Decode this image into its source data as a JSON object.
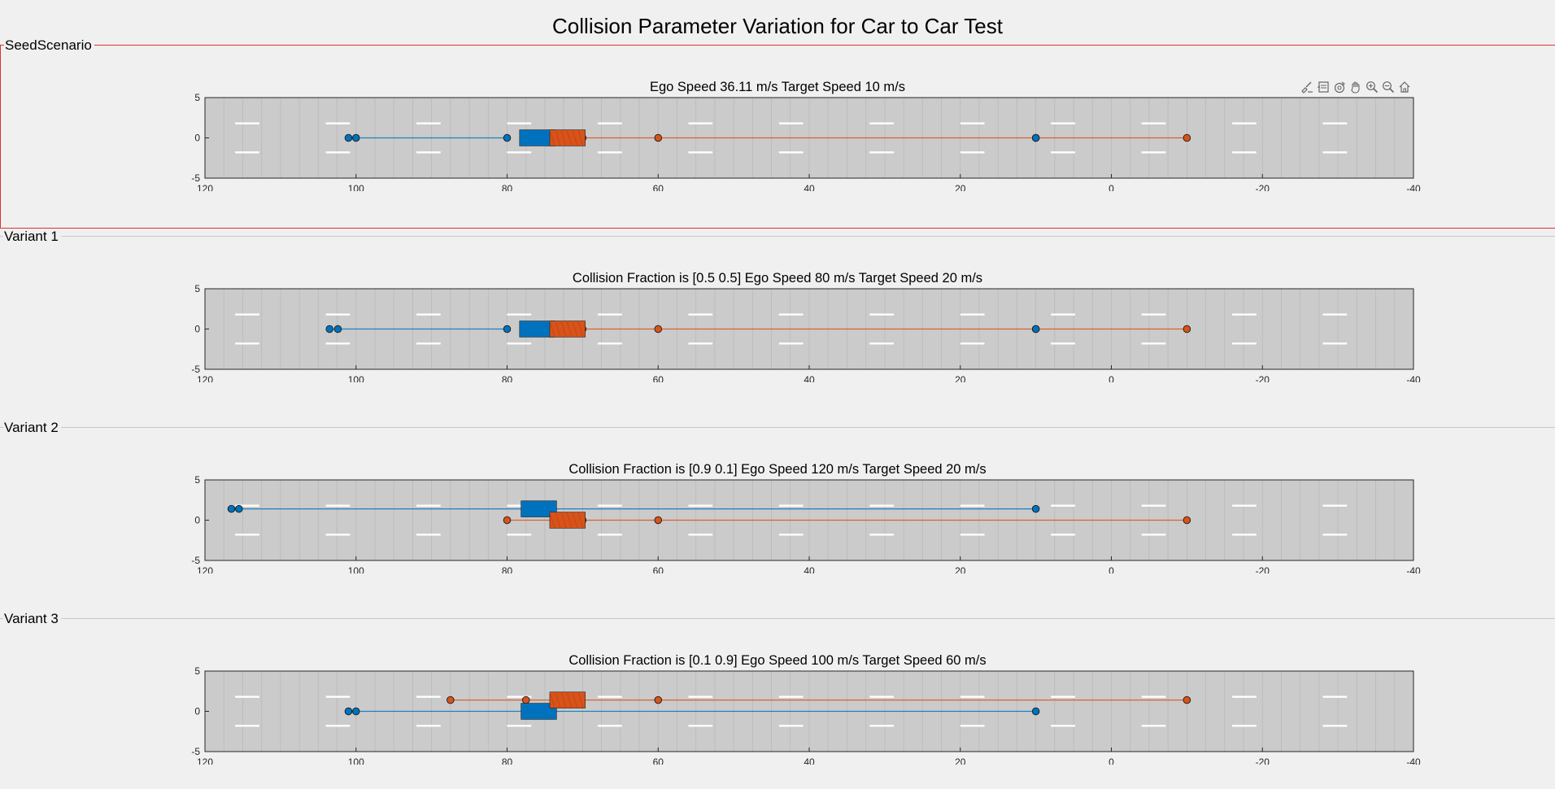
{
  "figure": {
    "title": "Collision Parameter Variation for Car to Car Test"
  },
  "toolbar": {
    "icons": [
      "brush-icon",
      "datatip-icon",
      "rotate-icon",
      "pan-icon",
      "zoom-in-icon",
      "zoom-out-icon",
      "home-icon"
    ]
  },
  "colors": {
    "background": "#f0f0f0",
    "road": "#cbcbcb",
    "ego": "#0072bd",
    "target": "#d95319",
    "seed_border": "#e03030",
    "lane_mark": "#ffffff"
  },
  "panels": [
    {
      "name": "seed",
      "label": "SeedScenario",
      "axes_title": "Ego Speed 36.11 m/s Target Speed 10 m/s",
      "x_ticks": [
        "120",
        "100",
        "80",
        "60",
        "40",
        "20",
        "0",
        "-20",
        "-40"
      ],
      "y_ticks": [
        "5",
        "0",
        "-5"
      ],
      "ego": {
        "y": 0,
        "waypoints": [
          101,
          100,
          80
        ],
        "car_x": 76
      },
      "target": {
        "y": 0,
        "waypoints": [
          70,
          60,
          10,
          -10
        ],
        "car_x": 72,
        "mid_marker": {
          "x": 10,
          "color": "ego"
        }
      }
    },
    {
      "name": "variant-1",
      "label": "Variant 1",
      "axes_title": "Collision Fraction is [0.5 0.5] Ego Speed 80 m/s Target Speed 20 m/s",
      "x_ticks": [
        "120",
        "100",
        "80",
        "60",
        "40",
        "20",
        "0",
        "-20",
        "-40"
      ],
      "y_ticks": [
        "5",
        "0",
        "-5"
      ],
      "ego": {
        "y": 0,
        "waypoints": [
          103.5,
          102.4,
          80
        ],
        "car_x": 76
      },
      "target": {
        "y": 0,
        "waypoints": [
          70,
          60,
          10,
          -10
        ],
        "car_x": 72,
        "mid_marker": {
          "x": 10,
          "color": "ego"
        }
      }
    },
    {
      "name": "variant-2",
      "label": "Variant 2",
      "axes_title": "Collision Fraction is [0.9 0.1] Ego Speed 120 m/s Target Speed 20 m/s",
      "x_ticks": [
        "120",
        "100",
        "80",
        "60",
        "40",
        "20",
        "0",
        "-20",
        "-40"
      ],
      "y_ticks": [
        "5",
        "0",
        "-5"
      ],
      "ego": {
        "y": 1.4,
        "waypoints": [
          116.5,
          115.5,
          10
        ],
        "car_x": 75.8
      },
      "target": {
        "y": 0,
        "waypoints": [
          80,
          70,
          60,
          -10
        ],
        "car_x": 72
      }
    },
    {
      "name": "variant-3",
      "label": "Variant 3",
      "axes_title": "Collision Fraction is [0.1 0.9] Ego Speed 100 m/s Target Speed 60 m/s",
      "x_ticks": [
        "120",
        "100",
        "80",
        "60",
        "40",
        "20",
        "0",
        "-20",
        "-40"
      ],
      "y_ticks": [
        "5",
        "0",
        "-5"
      ],
      "ego": {
        "y": 0,
        "waypoints": [
          101,
          100,
          10
        ],
        "car_x": 75.8
      },
      "target": {
        "y": 1.4,
        "waypoints": [
          87.5,
          77.5,
          60,
          -10
        ],
        "car_x": 72
      }
    }
  ]
}
